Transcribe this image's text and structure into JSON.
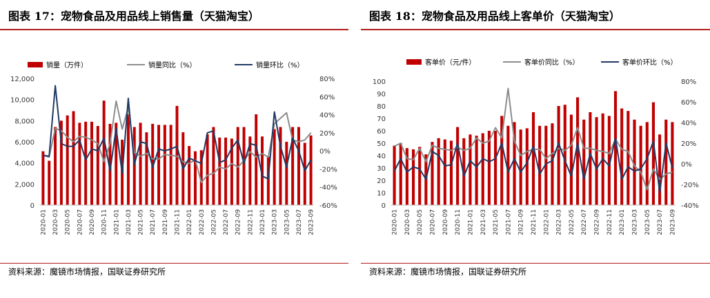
{
  "colors": {
    "bar": "#c00000",
    "yoy": "#8c8c8c",
    "mom": "#1f3864",
    "rule": "#b31b1b"
  },
  "source_text": "资料来源：魔镜市场情报，国联证券研究所",
  "chart_data": [
    {
      "type": "bar",
      "title": "图表 17：宠物食品及用品线上销售量（天猫淘宝）",
      "legend": {
        "bar": "销量（万件）",
        "yoy": "销量同比（%）",
        "mom": "销量环比（%）"
      },
      "left_axis": {
        "min": 0,
        "max": 12000,
        "step": 2000,
        "ticks": [
          "0",
          "2,000",
          "4,000",
          "6,000",
          "8,000",
          "10,000",
          "12,000"
        ]
      },
      "right_axis": {
        "min": -60,
        "max": 80,
        "step": 20,
        "ticks": [
          "-60%",
          "-40%",
          "-20%",
          "0%",
          "20%",
          "40%",
          "60%",
          "80%"
        ]
      },
      "x_tick_labels": [
        "2020-01",
        "2020-03",
        "2020-05",
        "2020-07",
        "2020-09",
        "2020-11",
        "2021-01",
        "2021-03",
        "2021-05",
        "2021-07",
        "2021-09",
        "2021-11",
        "2022-01",
        "2022-03",
        "2022-05",
        "2022-07",
        "2022-09",
        "2022-11",
        "2023-01",
        "2023-03",
        "2023-05",
        "2023-07",
        "2023-09"
      ],
      "x_tick_every": 2,
      "categories": [
        "2020-01",
        "2020-02",
        "2020-03",
        "2020-04",
        "2020-05",
        "2020-06",
        "2020-07",
        "2020-08",
        "2020-09",
        "2020-10",
        "2020-11",
        "2020-12",
        "2021-01",
        "2021-02",
        "2021-03",
        "2021-04",
        "2021-05",
        "2021-06",
        "2021-07",
        "2021-08",
        "2021-09",
        "2021-10",
        "2021-11",
        "2021-12",
        "2022-01",
        "2022-02",
        "2022-03",
        "2022-04",
        "2022-05",
        "2022-06",
        "2022-07",
        "2022-08",
        "2022-09",
        "2022-10",
        "2022-11",
        "2022-12",
        "2023-01",
        "2023-02",
        "2023-03",
        "2023-04",
        "2023-05",
        "2023-06",
        "2023-07",
        "2023-08",
        "2023-09"
      ],
      "bar_values": [
        5100,
        4200,
        7400,
        8000,
        8500,
        8900,
        7800,
        7900,
        7900,
        7500,
        9900,
        7700,
        7800,
        6200,
        8600,
        7400,
        7800,
        6900,
        7700,
        7600,
        7600,
        7600,
        9400,
        6900,
        5600,
        5100,
        5200,
        6700,
        7400,
        6400,
        6400,
        6300,
        7400,
        7400,
        6500,
        8600,
        6500,
        4600,
        7200,
        7400,
        6000,
        7400,
        7400,
        5900,
        6600
      ],
      "yoy_values": [
        -5,
        -7,
        25,
        22,
        15,
        10,
        16,
        15,
        12,
        8,
        -12,
        8,
        55,
        24,
        48,
        -2,
        -6,
        -3,
        -9,
        -9,
        -4,
        -5,
        -6,
        -12,
        -14,
        -10,
        -35,
        -27,
        -25,
        -18,
        -20,
        -14,
        -18,
        -11,
        -1,
        -7,
        -3,
        -7,
        30,
        36,
        42,
        12,
        10,
        12,
        20
      ],
      "mom_values": [
        -5,
        -6,
        72,
        8,
        5,
        5,
        12,
        -10,
        2,
        0,
        14,
        -22,
        25,
        -25,
        58,
        -15,
        10,
        8,
        -18,
        2,
        0,
        2,
        5,
        -20,
        -8,
        -11,
        -14,
        20,
        22,
        -13,
        -10,
        3,
        12,
        -14,
        8,
        6,
        -28,
        -31,
        43,
        5,
        -18,
        14,
        0,
        -22,
        -10
      ]
    },
    {
      "type": "bar",
      "title": "图表 18：宠物食品及用品线上客单价（天猫淘宝）",
      "legend": {
        "bar": "客单价（元/件）",
        "yoy": "客单价同比（%）",
        "mom": "客单价环比（%）"
      },
      "left_axis": {
        "min": 0,
        "max": 100,
        "step": 10,
        "ticks": [
          "0",
          "10",
          "20",
          "30",
          "40",
          "50",
          "60",
          "70",
          "80",
          "90",
          "100"
        ]
      },
      "right_axis": {
        "min": -40,
        "max": 80,
        "step": 20,
        "ticks": [
          "-40%",
          "-20%",
          "0%",
          "20%",
          "40%",
          "60%",
          "80%"
        ]
      },
      "x_tick_labels": [
        "2020-01",
        "2020-03",
        "2020-05",
        "2020-07",
        "2020-09",
        "2020-11",
        "2021-01",
        "2021-03",
        "2021-05",
        "2021-07",
        "2021-09",
        "2021-11",
        "2022-01",
        "2022-03",
        "2022-05",
        "2022-07",
        "2022-09",
        "2022-11",
        "2023-01",
        "2023-03",
        "2023-05",
        "2023-07",
        "2023-09"
      ],
      "x_tick_every": 2,
      "categories": [
        "2020-01",
        "2020-02",
        "2020-03",
        "2020-04",
        "2020-05",
        "2020-06",
        "2020-07",
        "2020-08",
        "2020-09",
        "2020-10",
        "2020-11",
        "2020-12",
        "2021-01",
        "2021-02",
        "2021-03",
        "2021-04",
        "2021-05",
        "2021-06",
        "2021-07",
        "2021-08",
        "2021-09",
        "2021-10",
        "2021-11",
        "2021-12",
        "2022-01",
        "2022-02",
        "2022-03",
        "2022-04",
        "2022-05",
        "2022-06",
        "2022-07",
        "2022-08",
        "2022-09",
        "2022-10",
        "2022-11",
        "2022-12",
        "2023-01",
        "2023-02",
        "2023-03",
        "2023-04",
        "2023-05",
        "2023-06",
        "2023-07",
        "2023-08",
        "2023-09"
      ],
      "bar_values": [
        48,
        50,
        46,
        45,
        47,
        41,
        51,
        54,
        53,
        52,
        63,
        54,
        57,
        56,
        58,
        60,
        60,
        72,
        64,
        67,
        61,
        62,
        75,
        64,
        64,
        66,
        80,
        81,
        73,
        87,
        69,
        75,
        71,
        74,
        72,
        92,
        78,
        76,
        69,
        64,
        67,
        83,
        57,
        69,
        67
      ],
      "yoy_values": [
        17,
        20,
        5,
        4,
        15,
        2,
        18,
        15,
        14,
        13,
        16,
        13,
        15,
        25,
        20,
        22,
        35,
        25,
        73,
        22,
        8,
        12,
        14,
        14,
        5,
        10,
        15,
        13,
        18,
        35,
        15,
        15,
        13,
        12,
        10,
        24,
        14,
        12,
        -2,
        -8,
        -25,
        -5,
        -15,
        -10,
        -8
      ],
      "mom_values": [
        -7,
        5,
        -8,
        -3,
        -5,
        -15,
        12,
        8,
        -2,
        -1,
        20,
        -12,
        3,
        -3,
        5,
        2,
        5,
        20,
        -8,
        5,
        -8,
        1,
        17,
        -10,
        0,
        3,
        20,
        3,
        -12,
        20,
        -15,
        10,
        -5,
        5,
        -2,
        25,
        -15,
        -3,
        -7,
        -5,
        5,
        22,
        -28,
        20,
        -4
      ]
    }
  ]
}
